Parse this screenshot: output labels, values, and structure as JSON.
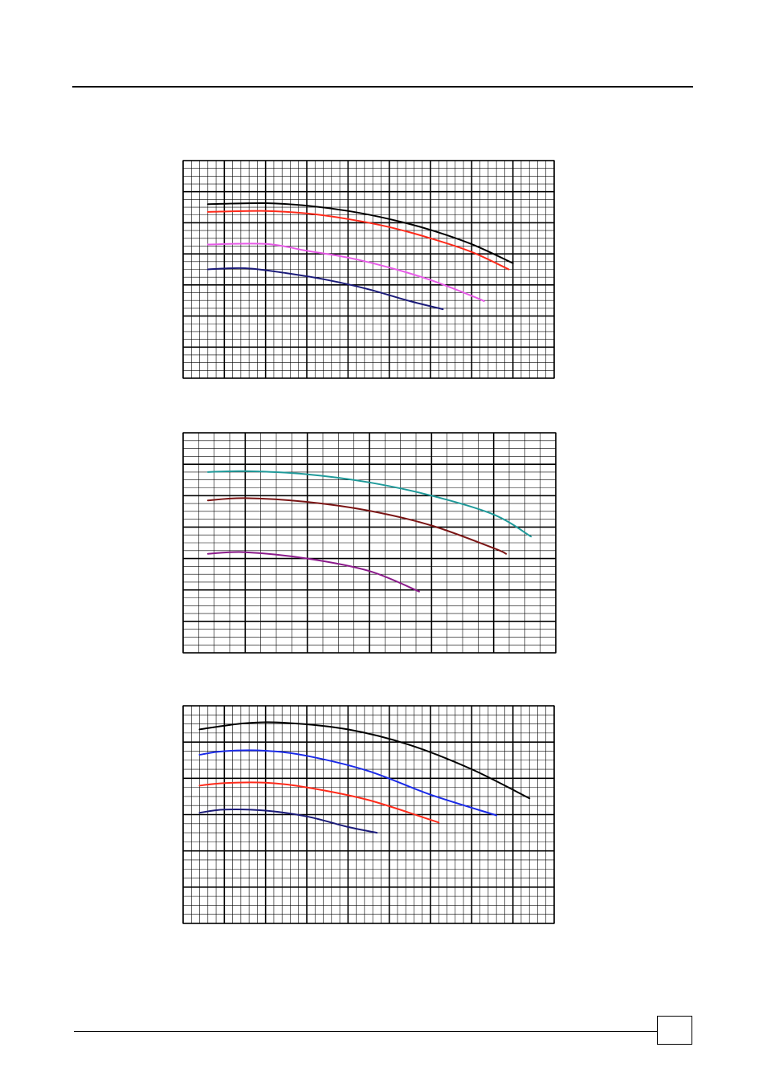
{
  "page": {
    "page_number": ""
  },
  "chart_data": [
    {
      "type": "line",
      "title": "",
      "xlabel": "",
      "ylabel": "",
      "xlim": [
        0,
        9
      ],
      "ylim": [
        0,
        7
      ],
      "grid": true,
      "x_minor_per_major": 5,
      "y_minor_per_major": 4,
      "series": [
        {
          "color": "#000000",
          "x": [
            0.6,
            2.0,
            3.0,
            4.0,
            5.0,
            6.0,
            7.0,
            8.0
          ],
          "y": [
            5.6,
            5.63,
            5.55,
            5.38,
            5.12,
            4.77,
            4.31,
            3.7
          ]
        },
        {
          "color": "#ff2a1a",
          "x": [
            0.6,
            2.0,
            3.0,
            4.0,
            5.0,
            6.0,
            7.0,
            7.9
          ],
          "y": [
            5.35,
            5.38,
            5.3,
            5.12,
            4.86,
            4.5,
            4.06,
            3.5
          ]
        },
        {
          "color": "#e85ae8",
          "x": [
            0.6,
            2.0,
            3.0,
            4.0,
            5.0,
            6.0,
            7.0,
            7.3
          ],
          "y": [
            4.3,
            4.32,
            4.1,
            3.88,
            3.56,
            3.16,
            2.65,
            2.48
          ]
        },
        {
          "color": "#1a1a78",
          "x": [
            0.6,
            1.5,
            2.5,
            3.5,
            4.5,
            5.5,
            6.3
          ],
          "y": [
            3.5,
            3.54,
            3.38,
            3.16,
            2.86,
            2.48,
            2.22
          ]
        }
      ]
    },
    {
      "type": "line",
      "title": "",
      "xlabel": "",
      "ylabel": "",
      "xlim": [
        0,
        6
      ],
      "ylim": [
        0,
        7
      ],
      "grid": true,
      "x_minor_per_major": 4,
      "y_minor_per_major": 4,
      "series": [
        {
          "color": "#1f9a9a",
          "x": [
            0.4,
            1.0,
            2.0,
            3.0,
            4.0,
            5.0,
            5.6
          ],
          "y": [
            5.75,
            5.78,
            5.68,
            5.42,
            5.0,
            4.4,
            3.7
          ]
        },
        {
          "color": "#7a1414",
          "x": [
            0.4,
            1.0,
            2.0,
            3.0,
            4.0,
            5.0,
            5.2
          ],
          "y": [
            4.85,
            4.92,
            4.8,
            4.52,
            4.05,
            3.33,
            3.15
          ]
        },
        {
          "color": "#8a1a8a",
          "x": [
            0.4,
            1.0,
            2.0,
            3.0,
            3.8
          ],
          "y": [
            3.15,
            3.2,
            3.0,
            2.6,
            1.95
          ]
        }
      ]
    },
    {
      "type": "line",
      "title": "",
      "xlabel": "",
      "ylabel": "",
      "xlim": [
        0,
        9
      ],
      "ylim": [
        0,
        6
      ],
      "grid": true,
      "x_minor_per_major": 5,
      "y_minor_per_major": 4,
      "series": [
        {
          "color": "#000000",
          "x": [
            0.4,
            1.5,
            2.5,
            4.0,
            5.5,
            7.0,
            8.4
          ],
          "y": [
            5.35,
            5.52,
            5.53,
            5.35,
            4.92,
            4.25,
            3.45
          ]
        },
        {
          "color": "#1a2ae8",
          "x": [
            0.4,
            1.0,
            2.0,
            3.0,
            4.5,
            6.0,
            7.6
          ],
          "y": [
            4.65,
            4.75,
            4.76,
            4.62,
            4.2,
            3.55,
            2.98
          ]
        },
        {
          "color": "#ff2a1a",
          "x": [
            0.4,
            1.0,
            2.0,
            3.0,
            4.5,
            6.2
          ],
          "y": [
            3.8,
            3.87,
            3.88,
            3.75,
            3.4,
            2.78
          ]
        },
        {
          "color": "#1a1a78",
          "x": [
            0.4,
            1.0,
            2.0,
            3.0,
            4.0,
            4.7
          ],
          "y": [
            3.05,
            3.14,
            3.11,
            2.95,
            2.66,
            2.5
          ]
        }
      ]
    }
  ]
}
